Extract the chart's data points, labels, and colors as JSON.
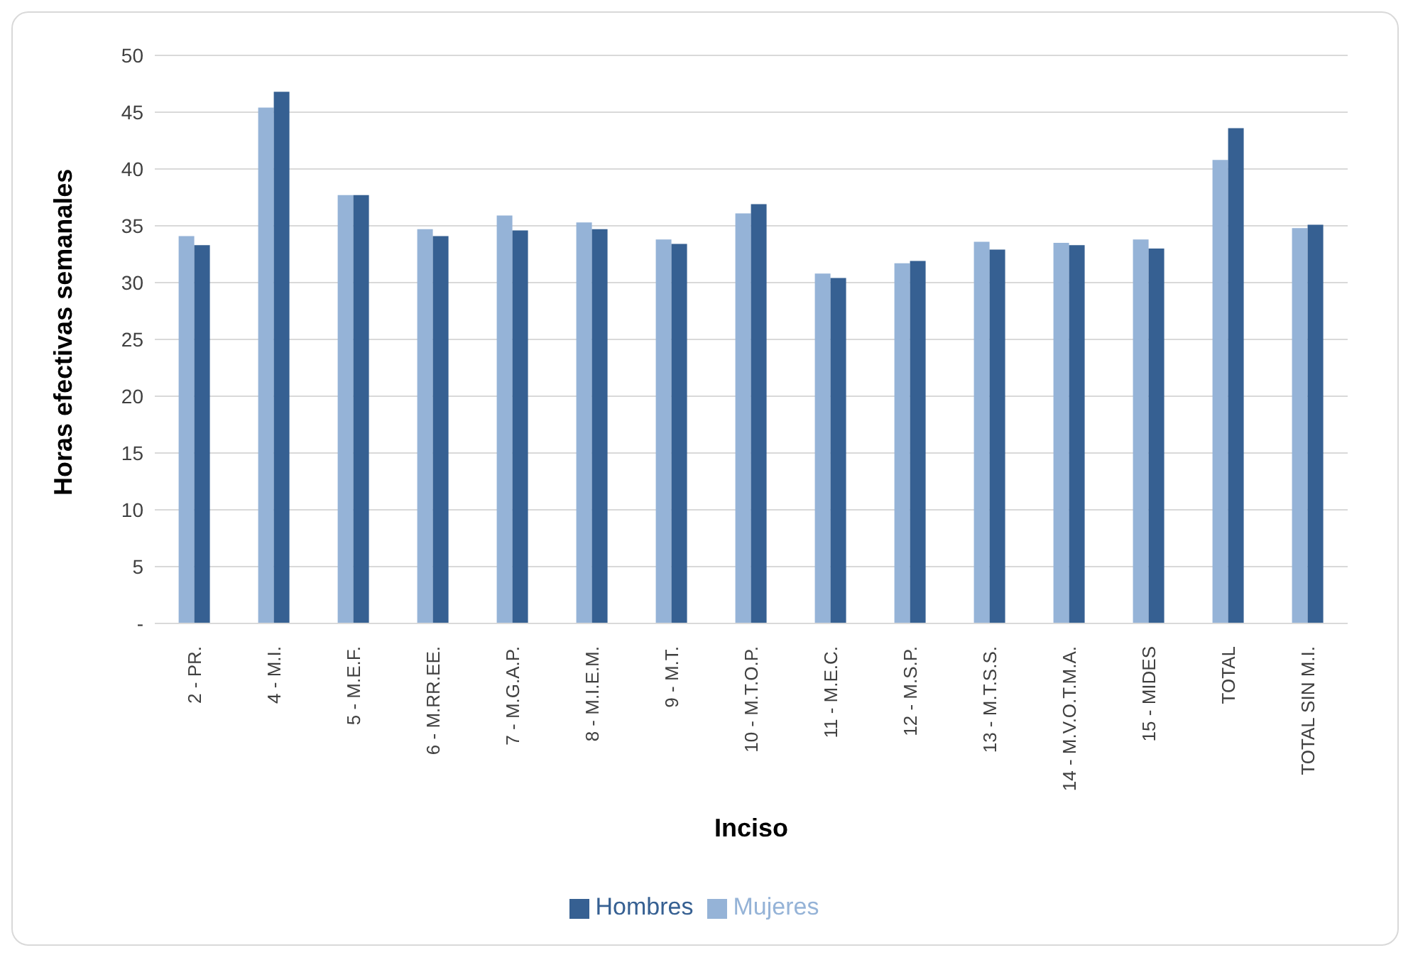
{
  "chart_data": {
    "type": "bar",
    "xlabel": "Inciso",
    "ylabel": "Horas efectivas semanales",
    "categories": [
      "2 - PR.",
      "4 - M.I.",
      "5 - M.E.F.",
      "6 - M.RR.EE.",
      "7 - M.G.A.P.",
      "8 - M.I.E.M.",
      "9 - M.T.",
      "10 - M.T.O.P.",
      "11 - M.E.C.",
      "12 - M.S.P.",
      "13 - M.T.S.S.",
      "14 - M.V.O.T.M.A.",
      "15 - MIDES",
      "TOTAL",
      "TOTAL SIN M.I."
    ],
    "series": [
      {
        "name": "Mujeres",
        "color": "#95b3d7",
        "values": [
          34.1,
          45.4,
          37.7,
          34.7,
          35.9,
          35.3,
          33.8,
          36.1,
          30.8,
          31.7,
          33.6,
          33.5,
          33.8,
          40.8,
          34.8
        ]
      },
      {
        "name": "Hombres",
        "color": "#366092",
        "values": [
          33.3,
          46.8,
          37.7,
          34.1,
          34.6,
          34.7,
          33.4,
          36.9,
          30.4,
          31.9,
          32.9,
          33.3,
          33.0,
          43.6,
          35.1
        ]
      }
    ],
    "ylim": [
      0,
      50
    ],
    "yticks": [
      {
        "value": 0,
        "label": "-"
      },
      5,
      10,
      15,
      20,
      25,
      30,
      35,
      40,
      45,
      50
    ],
    "grid": "y",
    "legend": "bottom"
  }
}
